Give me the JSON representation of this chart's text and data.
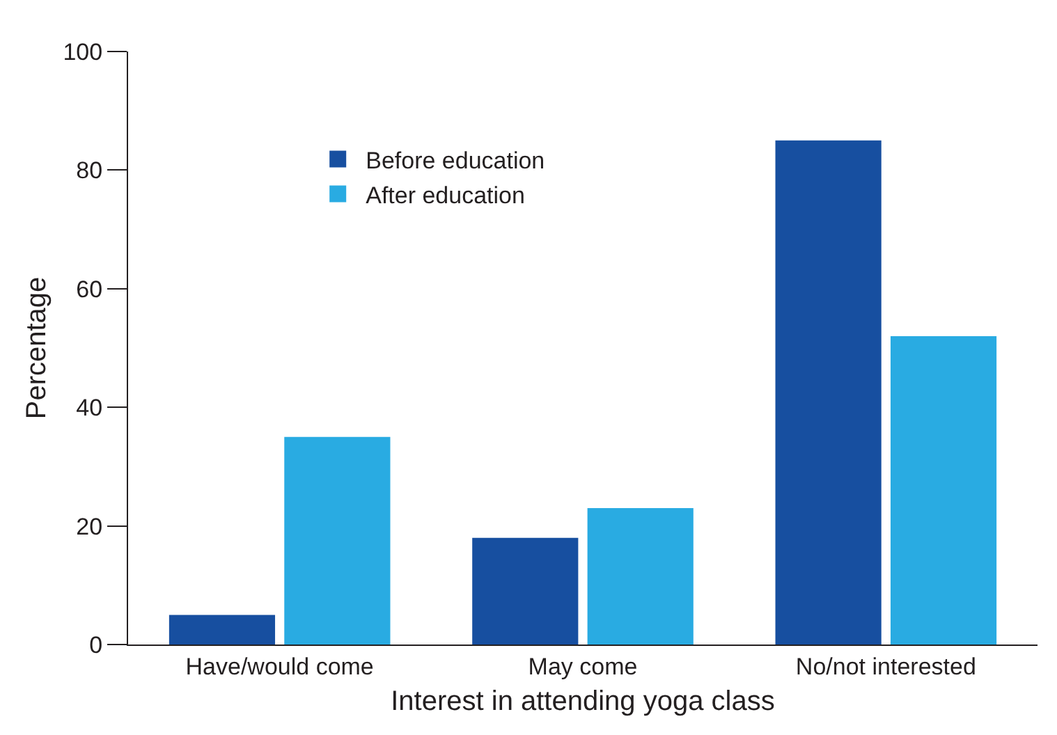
{
  "chart_data": {
    "type": "bar",
    "xlabel": "Interest in attending yoga class",
    "ylabel": "Percentage",
    "categories": [
      "Have/would come",
      "May come",
      "No/not interested"
    ],
    "series": [
      {
        "name": "Before education",
        "color": "#174fa0",
        "values": [
          5,
          18,
          85
        ]
      },
      {
        "name": "After education",
        "color": "#29abe2",
        "values": [
          35,
          23,
          52
        ]
      }
    ],
    "ylim": [
      0,
      100
    ],
    "yticks": [
      0,
      20,
      40,
      60,
      80,
      100
    ],
    "legend": "top left"
  }
}
